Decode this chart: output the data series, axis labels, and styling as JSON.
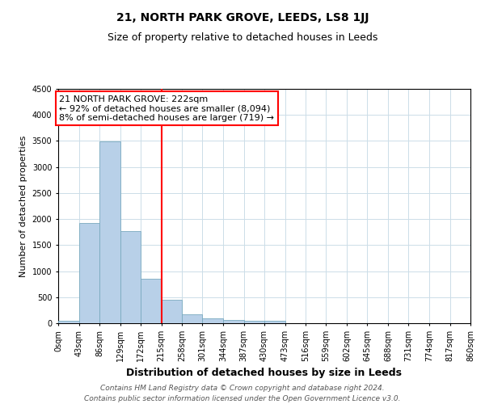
{
  "title_line1": "21, NORTH PARK GROVE, LEEDS, LS8 1JJ",
  "title_line2": "Size of property relative to detached houses in Leeds",
  "bar_values": [
    40,
    1920,
    3490,
    1770,
    860,
    450,
    175,
    100,
    60,
    40,
    40,
    0,
    0,
    0,
    0,
    0,
    0,
    0,
    0,
    0
  ],
  "bin_edges": [
    0,
    43,
    86,
    129,
    172,
    215,
    258,
    301,
    344,
    387,
    430,
    473,
    516,
    559,
    602,
    645,
    688,
    731,
    774,
    817,
    860
  ],
  "bin_labels": [
    "0sqm",
    "43sqm",
    "86sqm",
    "129sqm",
    "172sqm",
    "215sqm",
    "258sqm",
    "301sqm",
    "344sqm",
    "387sqm",
    "430sqm",
    "473sqm",
    "516sqm",
    "559sqm",
    "602sqm",
    "645sqm",
    "688sqm",
    "731sqm",
    "774sqm",
    "817sqm",
    "860sqm"
  ],
  "bar_color": "#b8d0e8",
  "bar_edge_color": "#7aaabf",
  "vline_x": 215,
  "vline_color": "red",
  "ylim": [
    0,
    4500
  ],
  "yticks": [
    0,
    500,
    1000,
    1500,
    2000,
    2500,
    3000,
    3500,
    4000,
    4500
  ],
  "ylabel": "Number of detached properties",
  "xlabel": "Distribution of detached houses by size in Leeds",
  "annotation_title": "21 NORTH PARK GROVE: 222sqm",
  "annotation_line2": "← 92% of detached houses are smaller (8,094)",
  "annotation_line3": "8% of semi-detached houses are larger (719) →",
  "annotation_box_color": "white",
  "annotation_box_edge_color": "red",
  "footer_line1": "Contains HM Land Registry data © Crown copyright and database right 2024.",
  "footer_line2": "Contains public sector information licensed under the Open Government Licence v3.0.",
  "background_color": "white",
  "grid_color": "#ccdde8",
  "title_fontsize": 10,
  "subtitle_fontsize": 9,
  "ylabel_fontsize": 8,
  "xlabel_fontsize": 9,
  "tick_fontsize": 7,
  "annot_fontsize": 8,
  "footer_fontsize": 6.5
}
